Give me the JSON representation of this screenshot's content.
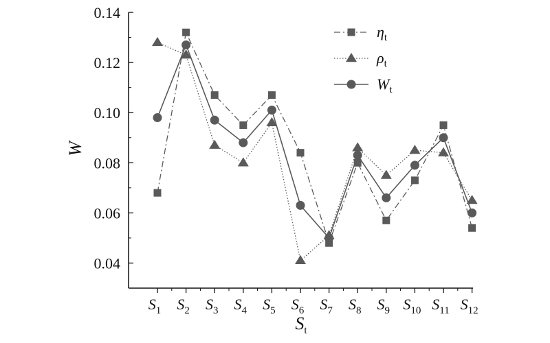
{
  "chart_data": {
    "type": "line",
    "xlabel": "S",
    "xlabel_sub": "t",
    "ylabel": "W",
    "categories": [
      "S1",
      "S2",
      "S3",
      "S4",
      "S5",
      "S6",
      "S7",
      "S8",
      "S9",
      "S10",
      "S11",
      "S12"
    ],
    "category_main": "S",
    "category_subs": [
      "1",
      "2",
      "3",
      "4",
      "5",
      "6",
      "7",
      "8",
      "9",
      "10",
      "11",
      "12"
    ],
    "ylim": [
      0.03,
      0.14
    ],
    "yticks": [
      "0.04",
      "0.06",
      "0.08",
      "0.10",
      "0.12",
      "0.14"
    ],
    "ytick_values": [
      0.04,
      0.06,
      0.08,
      0.1,
      0.12,
      0.14
    ],
    "grid": false,
    "legend_position": "top-right",
    "series": [
      {
        "name": "η",
        "name_sub": "t",
        "marker": "square",
        "line_style": "dash-dot",
        "color": "#5a5a5a",
        "values": [
          0.068,
          0.132,
          0.107,
          0.095,
          0.107,
          0.084,
          0.048,
          0.08,
          0.057,
          0.073,
          0.095,
          0.054
        ]
      },
      {
        "name": "ρ",
        "name_sub": "t",
        "marker": "triangle",
        "line_style": "dotted",
        "color": "#5a5a5a",
        "values": [
          0.128,
          0.123,
          0.087,
          0.08,
          0.096,
          0.041,
          0.051,
          0.086,
          0.075,
          0.085,
          0.084,
          0.065
        ]
      },
      {
        "name": "W",
        "name_sub": "t",
        "marker": "circle",
        "line_style": "solid",
        "color": "#5a5a5a",
        "values": [
          0.098,
          0.127,
          0.097,
          0.088,
          0.101,
          0.063,
          0.05,
          0.083,
          0.066,
          0.079,
          0.09,
          0.06
        ]
      }
    ]
  }
}
